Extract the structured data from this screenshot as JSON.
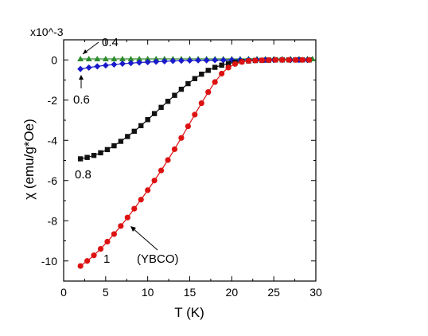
{
  "chart_data": {
    "type": "scatter",
    "xlabel": "T (K)",
    "ylabel": "χ (emu/g*Oe)",
    "y_multiplier": "x10^-3",
    "xlim": [
      0,
      30
    ],
    "ylim": [
      -11,
      1
    ],
    "xticks": [
      0,
      5,
      10,
      15,
      20,
      25,
      30
    ],
    "yticks": [
      0,
      -2,
      -4,
      -6,
      -8,
      -10
    ],
    "grid": false,
    "series": [
      {
        "name": "",
        "marker": "triangle",
        "color": "#2e8b2e",
        "x": [
          2,
          3,
          4,
          5,
          6,
          7,
          8,
          9,
          10,
          11,
          12,
          13,
          14,
          15,
          16,
          17,
          18,
          19,
          20,
          21,
          22,
          23,
          24,
          25,
          26,
          27,
          28,
          29,
          29.6
        ],
        "y": [
          0.05,
          0.05,
          0.05,
          0.05,
          0.05,
          0.05,
          0.05,
          0.05,
          0.05,
          0.05,
          0.05,
          0.05,
          0.05,
          0.05,
          0.05,
          0.05,
          0.05,
          0.05,
          0.05,
          0.05,
          0.05,
          0.05,
          0.05,
          0.05,
          0.05,
          0.05,
          0.05,
          0.05,
          0.05
        ]
      },
      {
        "name": "",
        "marker": "diamond",
        "color": "#1a1acc",
        "x": [
          2,
          3,
          4,
          5,
          6,
          7,
          8,
          9,
          10,
          11,
          12,
          13,
          14,
          15,
          16,
          17,
          18,
          19,
          20,
          21,
          22,
          23,
          24,
          25,
          26,
          27,
          28,
          29
        ],
        "y": [
          -0.45,
          -0.38,
          -0.32,
          -0.27,
          -0.23,
          -0.19,
          -0.16,
          -0.13,
          -0.11,
          -0.09,
          -0.07,
          -0.05,
          -0.04,
          -0.03,
          -0.02,
          -0.02,
          -0.01,
          -0.01,
          0.0,
          0.0,
          0.0,
          0.0,
          0.0,
          0.0,
          0.0,
          0.0,
          0.0,
          0.0
        ]
      },
      {
        "name": "",
        "marker": "square",
        "color": "#111111",
        "x": [
          2,
          2.8,
          3.6,
          4.4,
          5.2,
          6.0,
          6.8,
          7.6,
          8.4,
          9.2,
          10.0,
          10.8,
          11.6,
          12.4,
          13.2,
          14.0,
          14.8,
          15.6,
          16.4,
          17.2,
          18.0,
          18.8,
          19.6,
          20.4,
          21.2,
          22.0,
          22.8,
          23.6,
          24.4,
          25.2,
          26.0,
          26.8,
          27.6,
          28.4,
          29.2
        ],
        "y": [
          -4.92,
          -4.85,
          -4.75,
          -4.62,
          -4.46,
          -4.27,
          -4.05,
          -3.81,
          -3.55,
          -3.27,
          -2.97,
          -2.67,
          -2.36,
          -2.06,
          -1.76,
          -1.46,
          -1.18,
          -0.93,
          -0.71,
          -0.52,
          -0.37,
          -0.26,
          -0.18,
          -0.12,
          -0.08,
          -0.05,
          -0.03,
          -0.02,
          -0.01,
          0.0,
          0.0,
          0.0,
          0.0,
          0.0,
          0.0
        ]
      },
      {
        "name": "",
        "marker": "circle",
        "color": "#dd1111",
        "x": [
          2,
          2.8,
          3.6,
          4.4,
          5.2,
          6.0,
          6.8,
          7.6,
          8.4,
          9.2,
          10.0,
          10.8,
          11.6,
          12.4,
          13.2,
          14.0,
          14.8,
          15.6,
          16.4,
          17.2,
          18.0,
          18.8,
          19.6,
          20.4,
          21.2,
          22.0,
          22.8,
          23.6,
          24.4,
          25.2,
          26.0,
          26.8,
          27.6,
          28.4,
          29.2
        ],
        "y": [
          -10.25,
          -10.0,
          -9.72,
          -9.4,
          -9.04,
          -8.66,
          -8.26,
          -7.84,
          -7.4,
          -6.95,
          -6.48,
          -6.0,
          -5.5,
          -4.98,
          -4.44,
          -3.88,
          -3.3,
          -2.72,
          -2.15,
          -1.6,
          -1.1,
          -0.68,
          -0.38,
          -0.2,
          -0.1,
          -0.05,
          -0.03,
          -0.02,
          -0.01,
          0.0,
          0.0,
          0.0,
          0.0,
          0.0,
          0.0
        ]
      }
    ],
    "annotations": [
      "0.4",
      "0.6",
      "0.8",
      "1",
      "(YBCO)"
    ]
  }
}
